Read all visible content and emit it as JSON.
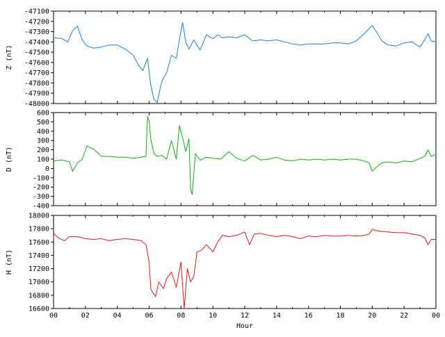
{
  "chart_data": [
    {
      "type": "line",
      "panel": "Z",
      "ylabel": "Z (nT)",
      "ylim": [
        -48000,
        -47100
      ],
      "yticks": [
        -47100,
        -47200,
        -47300,
        -47400,
        -47500,
        -47600,
        -47700,
        -47800,
        -47900,
        -48000
      ],
      "color": "#1f7fd8",
      "x": [
        0,
        0.5,
        0.9,
        1.2,
        1.5,
        1.8,
        2.1,
        2.5,
        3,
        3.5,
        4,
        4.5,
        5,
        5.3,
        5.6,
        5.9,
        6.1,
        6.3,
        6.5,
        6.8,
        7.1,
        7.4,
        7.7,
        7.9,
        8.1,
        8.3,
        8.5,
        8.8,
        9.2,
        9.6,
        10,
        10.3,
        10.6,
        11,
        11.5,
        12,
        12.5,
        13,
        13.5,
        14,
        14.5,
        15,
        15.5,
        16,
        16.5,
        17,
        17.5,
        18,
        18.5,
        19,
        19.5,
        19.8,
        20,
        20.3,
        20.6,
        21,
        21.5,
        22,
        22.5,
        23,
        23.3,
        23.5,
        23.7,
        24
      ],
      "y": [
        -47360,
        -47365,
        -47400,
        -47290,
        -47245,
        -47380,
        -47440,
        -47460,
        -47450,
        -47430,
        -47430,
        -47470,
        -47530,
        -47620,
        -47680,
        -47560,
        -47820,
        -47960,
        -47990,
        -47780,
        -47700,
        -47530,
        -47560,
        -47380,
        -47210,
        -47400,
        -47470,
        -47380,
        -47480,
        -47330,
        -47370,
        -47330,
        -47360,
        -47350,
        -47360,
        -47330,
        -47390,
        -47380,
        -47390,
        -47380,
        -47400,
        -47420,
        -47430,
        -47420,
        -47420,
        -47420,
        -47410,
        -47410,
        -47420,
        -47390,
        -47320,
        -47270,
        -47240,
        -47310,
        -47390,
        -47430,
        -47440,
        -47410,
        -47400,
        -47450,
        -47380,
        -47320,
        -47390,
        -47400
      ]
    },
    {
      "type": "line",
      "panel": "D",
      "ylabel": "D (nT)",
      "ylim": [
        -400,
        600
      ],
      "yticks": [
        600,
        500,
        400,
        300,
        200,
        100,
        0,
        -100,
        -200,
        -300,
        -400
      ],
      "color": "#10b010",
      "x": [
        0,
        0.5,
        1,
        1.2,
        1.5,
        1.8,
        2.1,
        2.5,
        3,
        3.5,
        4,
        4.5,
        5,
        5.5,
        5.8,
        5.9,
        6,
        6.1,
        6.3,
        6.5,
        6.8,
        7.1,
        7.4,
        7.7,
        7.9,
        8.1,
        8.3,
        8.5,
        8.6,
        8.7,
        8.9,
        9.2,
        9.6,
        10,
        10.5,
        11,
        11.5,
        12,
        12.5,
        13,
        13.5,
        14,
        14.5,
        15,
        15.5,
        16,
        16.5,
        17,
        17.5,
        18,
        18.5,
        19,
        19.5,
        19.8,
        20,
        20.3,
        20.6,
        21,
        21.5,
        22,
        22.5,
        23,
        23.3,
        23.5,
        23.7,
        24
      ],
      "y": [
        80,
        90,
        70,
        -30,
        60,
        100,
        240,
        210,
        130,
        130,
        120,
        120,
        110,
        120,
        130,
        560,
        500,
        320,
        160,
        130,
        140,
        100,
        300,
        100,
        460,
        330,
        180,
        320,
        -220,
        -280,
        160,
        90,
        120,
        110,
        100,
        180,
        110,
        80,
        140,
        90,
        100,
        120,
        90,
        80,
        100,
        90,
        100,
        90,
        100,
        90,
        100,
        100,
        80,
        60,
        -30,
        20,
        60,
        70,
        60,
        80,
        70,
        110,
        130,
        200,
        130,
        150
      ]
    },
    {
      "type": "line",
      "panel": "H",
      "ylabel": "H (nT)",
      "ylim": [
        16600,
        18000
      ],
      "yticks": [
        18000,
        17800,
        17600,
        17400,
        17200,
        17000,
        16800,
        16600
      ],
      "color": "#e01a1a",
      "x": [
        0,
        0.3,
        0.7,
        1,
        1.5,
        2,
        2.5,
        3,
        3.5,
        4,
        4.5,
        5,
        5.5,
        5.8,
        6,
        6.1,
        6.2,
        6.4,
        6.6,
        6.9,
        7.1,
        7.4,
        7.7,
        8,
        8.2,
        8.4,
        8.6,
        8.8,
        9,
        9.3,
        9.6,
        10,
        10.3,
        10.6,
        11,
        11.5,
        12,
        12.3,
        12.6,
        13,
        13.5,
        14,
        14.5,
        15,
        15.5,
        16,
        16.5,
        17,
        17.5,
        18,
        18.5,
        19,
        19.5,
        19.8,
        20,
        20.3,
        20.6,
        21,
        21.5,
        22,
        22.5,
        23,
        23.3,
        23.5,
        23.7,
        24
      ],
      "y": [
        17730,
        17660,
        17620,
        17680,
        17680,
        17650,
        17640,
        17650,
        17620,
        17640,
        17650,
        17640,
        17620,
        17560,
        17300,
        16900,
        16850,
        16780,
        17000,
        16900,
        17050,
        17150,
        16920,
        17300,
        16600,
        17200,
        17000,
        17080,
        17450,
        17480,
        17560,
        17450,
        17600,
        17700,
        17680,
        17700,
        17750,
        17560,
        17720,
        17730,
        17700,
        17680,
        17700,
        17680,
        17650,
        17690,
        17680,
        17700,
        17690,
        17690,
        17700,
        17690,
        17700,
        17720,
        17790,
        17770,
        17760,
        17750,
        17740,
        17740,
        17720,
        17700,
        17660,
        17560,
        17640,
        17640
      ]
    }
  ],
  "x_axis": {
    "xlabel": "Hour",
    "xlim": [
      0,
      24
    ],
    "ticklabels": [
      "00",
      "02",
      "04",
      "06",
      "08",
      "10",
      "12",
      "14",
      "16",
      "18",
      "20",
      "22",
      "00"
    ]
  }
}
